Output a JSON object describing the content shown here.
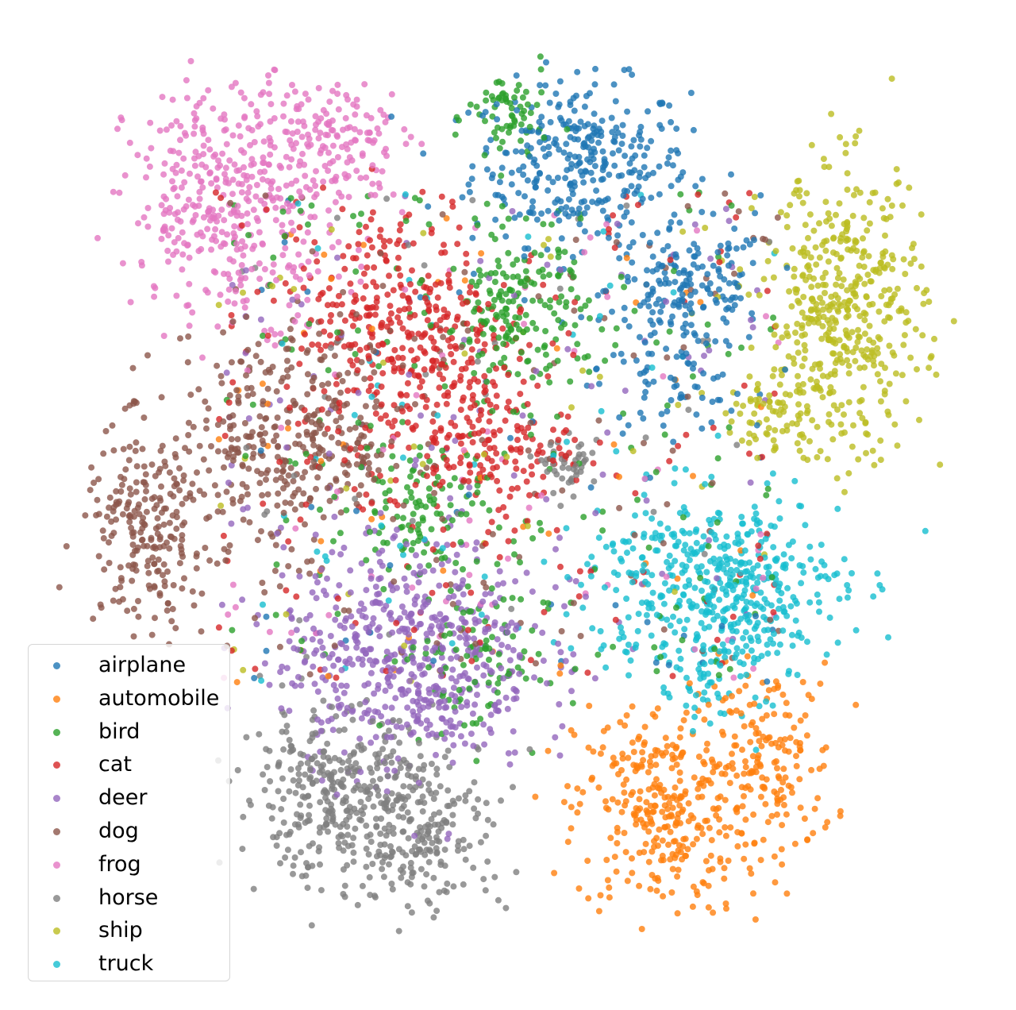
{
  "chart_data": {
    "type": "scatter",
    "title": "",
    "xlabel": "",
    "ylabel": "",
    "axes_visible": false,
    "grid": false,
    "legend_position": "lower-left",
    "xlim": [
      0,
      100
    ],
    "ylim": [
      0,
      100
    ],
    "series": [
      {
        "name": "airplane",
        "color": "#1f77b4",
        "clusters": [
          {
            "cx": 58,
            "cy": 88,
            "sx": 6.0,
            "sy": 4.5,
            "n": 330
          },
          {
            "cx": 70,
            "cy": 74,
            "sx": 4.5,
            "sy": 3.5,
            "n": 170
          },
          {
            "cx": 68,
            "cy": 63,
            "sx": 4.0,
            "sy": 2.5,
            "n": 60
          }
        ],
        "noise": 50
      },
      {
        "name": "automobile",
        "color": "#ff7f0e",
        "clusters": [
          {
            "cx": 67,
            "cy": 16,
            "sx": 4.8,
            "sy": 6.0,
            "n": 320
          },
          {
            "cx": 79,
            "cy": 21,
            "sx": 3.6,
            "sy": 5.5,
            "n": 170
          }
        ],
        "noise": 50
      },
      {
        "name": "bird",
        "color": "#2ca02c",
        "clusters": [
          {
            "cx": 51,
            "cy": 71,
            "sx": 4.0,
            "sy": 4.5,
            "n": 170
          },
          {
            "cx": 50,
            "cy": 93,
            "sx": 2.2,
            "sy": 3.0,
            "n": 70
          },
          {
            "cx": 40,
            "cy": 50,
            "sx": 3.5,
            "sy": 3.5,
            "n": 100
          },
          {
            "cx": 46,
            "cy": 33,
            "sx": 4.0,
            "sy": 5.0,
            "n": 90
          }
        ],
        "noise": 170
      },
      {
        "name": "cat",
        "color": "#d62728",
        "clusters": [
          {
            "cx": 38,
            "cy": 70,
            "sx": 6.0,
            "sy": 7.0,
            "n": 330
          },
          {
            "cx": 47,
            "cy": 57,
            "sx": 5.0,
            "sy": 4.0,
            "n": 180
          }
        ],
        "noise": 150
      },
      {
        "name": "deer",
        "color": "#9467bd",
        "clusters": [
          {
            "cx": 39,
            "cy": 33,
            "sx": 7.0,
            "sy": 6.5,
            "n": 560
          }
        ],
        "noise": 120
      },
      {
        "name": "dog",
        "color": "#8c564b",
        "clusters": [
          {
            "cx": 10,
            "cy": 47,
            "sx": 3.5,
            "sy": 5.5,
            "n": 220
          },
          {
            "cx": 26,
            "cy": 57,
            "sx": 7.0,
            "sy": 6.0,
            "n": 360
          }
        ],
        "noise": 120
      },
      {
        "name": "frog",
        "color": "#e377c2",
        "clusters": [
          {
            "cx": 20,
            "cy": 84,
            "sx": 6.0,
            "sy": 6.5,
            "n": 420
          },
          {
            "cx": 31,
            "cy": 91,
            "sx": 4.0,
            "sy": 3.0,
            "n": 120
          }
        ],
        "noise": 70
      },
      {
        "name": "horse",
        "color": "#7f7f7f",
        "clusters": [
          {
            "cx": 30,
            "cy": 18,
            "sx": 5.0,
            "sy": 4.5,
            "n": 280
          },
          {
            "cx": 40,
            "cy": 14,
            "sx": 5.0,
            "sy": 5.0,
            "n": 250
          },
          {
            "cx": 57,
            "cy": 54,
            "sx": 1.5,
            "sy": 1.5,
            "n": 40
          }
        ],
        "noise": 40
      },
      {
        "name": "ship",
        "color": "#bcbd22",
        "clusters": [
          {
            "cx": 87,
            "cy": 71,
            "sx": 4.5,
            "sy": 8.0,
            "n": 480
          },
          {
            "cx": 79,
            "cy": 60,
            "sx": 2.5,
            "sy": 2.0,
            "n": 60
          }
        ],
        "noise": 40
      },
      {
        "name": "truck",
        "color": "#17becf",
        "clusters": [
          {
            "cx": 73,
            "cy": 41,
            "sx": 7.0,
            "sy": 5.0,
            "n": 480
          },
          {
            "cx": 73,
            "cy": 31,
            "sx": 3.0,
            "sy": 3.0,
            "n": 50
          }
        ],
        "noise": 50
      }
    ]
  }
}
